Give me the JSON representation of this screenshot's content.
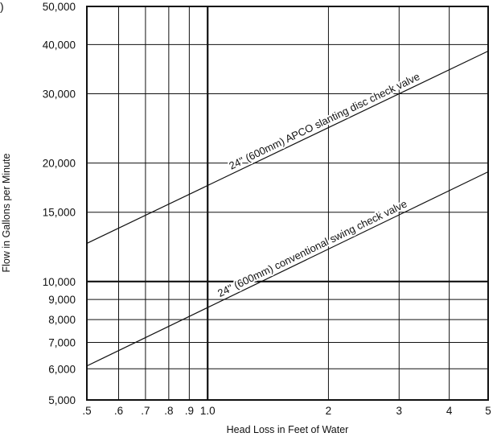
{
  "chart_data": {
    "type": "line",
    "x_scale": "log",
    "y_scale": "log",
    "xlabel": "Head Loss in Feet of Water",
    "ylabel": "Flow in Gallons per Minute",
    "xlim": [
      0.5,
      5
    ],
    "ylim": [
      5000,
      50000
    ],
    "grid": true,
    "x_ticks": [
      {
        "value": 0.5,
        "label": ".5"
      },
      {
        "value": 0.6,
        "label": ".6"
      },
      {
        "value": 0.7,
        "label": ".7"
      },
      {
        "value": 0.8,
        "label": ".8"
      },
      {
        "value": 0.9,
        "label": ".9"
      },
      {
        "value": 1.0,
        "label": "1.0"
      },
      {
        "value": 2,
        "label": "2"
      },
      {
        "value": 3,
        "label": "3"
      },
      {
        "value": 4,
        "label": "4"
      },
      {
        "value": 5,
        "label": "5"
      }
    ],
    "y_ticks": [
      {
        "value": 5000,
        "label": "5,000"
      },
      {
        "value": 6000,
        "label": "6,000"
      },
      {
        "value": 7000,
        "label": "7,000"
      },
      {
        "value": 8000,
        "label": "8,000"
      },
      {
        "value": 9000,
        "label": "9,000"
      },
      {
        "value": 10000,
        "label": "10,000"
      },
      {
        "value": 15000,
        "label": "15,000"
      },
      {
        "value": 20000,
        "label": "20,000"
      },
      {
        "value": 30000,
        "label": "30,000"
      },
      {
        "value": 40000,
        "label": "40,000"
      },
      {
        "value": 50000,
        "label": "50,000"
      }
    ],
    "reference_lines": {
      "x": 1.0,
      "y": 10000
    },
    "series": [
      {
        "name": "24\" (600mm) APCO slanting disc check valve",
        "x": [
          0.5,
          5
        ],
        "y": [
          12500,
          38500
        ]
      },
      {
        "name": "24\" (600mm) conventional swing check valve",
        "x": [
          0.5,
          5
        ],
        "y": [
          6100,
          19000
        ]
      }
    ],
    "edge_fragment": ")"
  }
}
